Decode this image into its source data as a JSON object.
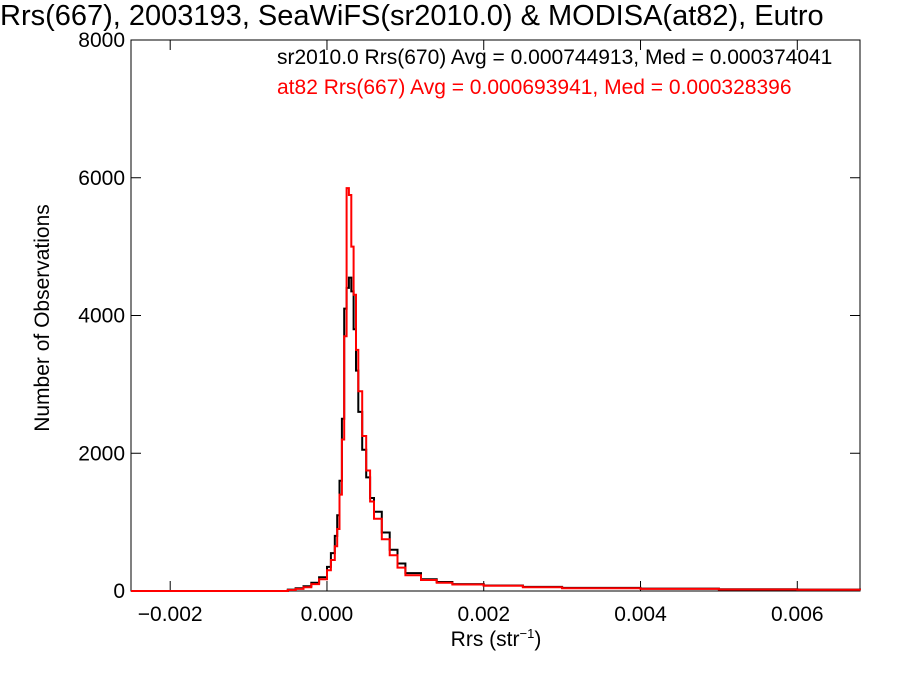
{
  "chart_data": {
    "type": "line",
    "title": "Rrs(667), 2003193, SeaWiFS(sr2010.0) & MODISA(at82), Eutro",
    "xlabel": "Rrs (str",
    "xlabel_sup": "−1",
    "xlabel_close": ")",
    "ylabel": "Number of Observations",
    "xlim": [
      -0.0025,
      0.0068
    ],
    "ylim": [
      0,
      8000
    ],
    "x_ticks": [
      -0.002,
      0.0,
      0.002,
      0.004,
      0.006
    ],
    "x_tick_labels": [
      "−0.002",
      "0.000",
      "0.002",
      "0.004",
      "0.006"
    ],
    "y_ticks": [
      0,
      2000,
      4000,
      6000,
      8000
    ],
    "y_tick_labels": [
      "0",
      "2000",
      "4000",
      "6000",
      "8000"
    ],
    "series": [
      {
        "legend": "sr2010.0 Rrs(670) Avg = 0.000744913, Med = 0.000374041",
        "color": "#000000",
        "x": [
          -0.0025,
          -0.001,
          -0.0005,
          -0.0004,
          -0.0003,
          -0.0002,
          -0.0001,
          0.0,
          5e-05,
          0.0001,
          0.00013,
          0.00016,
          0.00019,
          0.00022,
          0.00025,
          0.00028,
          0.00031,
          0.00034,
          0.00037,
          0.0004,
          0.00045,
          0.0005,
          0.00055,
          0.0006,
          0.0007,
          0.0008,
          0.0009,
          0.001,
          0.0012,
          0.0014,
          0.0016,
          0.002,
          0.0025,
          0.003,
          0.004,
          0.005,
          0.006,
          0.0068
        ],
        "y": [
          0,
          0,
          20,
          40,
          70,
          120,
          200,
          350,
          550,
          800,
          1100,
          1600,
          2500,
          4100,
          4400,
          4550,
          4350,
          3800,
          3200,
          2600,
          2050,
          1650,
          1350,
          1150,
          850,
          600,
          400,
          260,
          170,
          130,
          100,
          80,
          60,
          45,
          35,
          25,
          20,
          15
        ]
      },
      {
        "legend": "at82 Rrs(667) Avg = 0.000693941, Med = 0.000328396",
        "color": "#ff0000",
        "x": [
          -0.0025,
          -0.001,
          -0.0005,
          -0.0004,
          -0.0003,
          -0.0002,
          -0.0001,
          0.0,
          5e-05,
          0.0001,
          0.00013,
          0.00016,
          0.00019,
          0.00022,
          0.00025,
          0.00028,
          0.00031,
          0.00034,
          0.00037,
          0.0004,
          0.00045,
          0.0005,
          0.00055,
          0.0006,
          0.0007,
          0.0008,
          0.0009,
          0.001,
          0.0012,
          0.0014,
          0.0016,
          0.002,
          0.0025,
          0.003,
          0.004,
          0.005,
          0.006,
          0.0068
        ],
        "y": [
          0,
          0,
          15,
          30,
          55,
          100,
          170,
          300,
          450,
          650,
          900,
          1400,
          2200,
          3700,
          5850,
          5750,
          5000,
          4300,
          3500,
          2900,
          2250,
          1750,
          1300,
          1050,
          750,
          520,
          340,
          230,
          160,
          120,
          95,
          75,
          55,
          40,
          30,
          22,
          18,
          12
        ]
      }
    ]
  }
}
